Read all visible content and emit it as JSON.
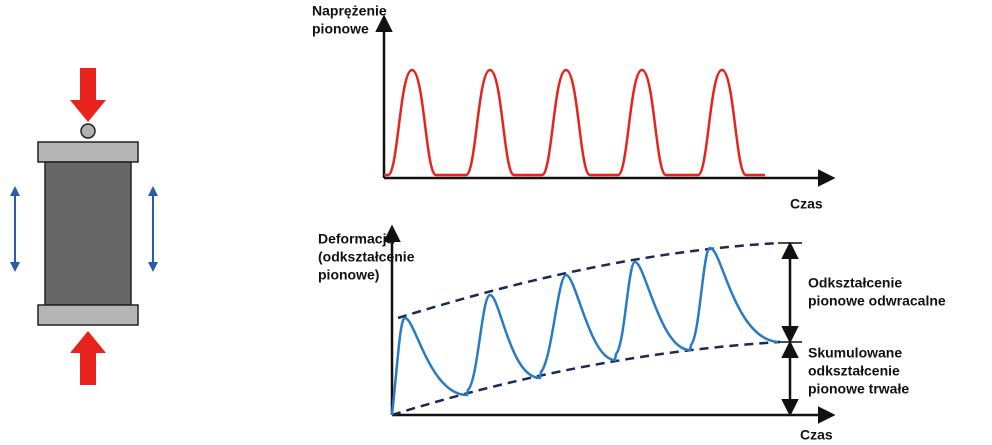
{
  "top_chart": {
    "y_label": [
      "Naprężenie",
      "pionowe"
    ],
    "x_label": "Czas"
  },
  "bottom_chart": {
    "y_label": [
      "Deformacja",
      "(odkształcenie",
      "pionowe)"
    ],
    "x_label": "Czas",
    "annotations": [
      {
        "lines": [
          "Odkształcenie",
          "pionowe odwracalne"
        ]
      },
      {
        "lines": [
          "Skumulowane",
          "odkształcenie",
          "pionowe trwałe"
        ]
      }
    ]
  }
}
